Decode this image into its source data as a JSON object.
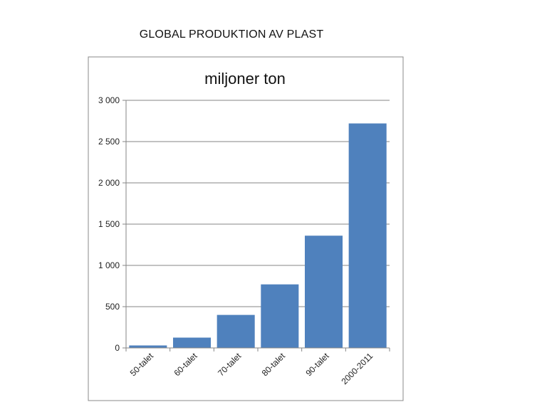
{
  "page": {
    "title": "GLOBAL PRODUKTION AV PLAST"
  },
  "chart_data": {
    "type": "bar",
    "title": "miljoner ton",
    "xlabel": "",
    "ylabel": "",
    "categories": [
      "50-talet",
      "60-talet",
      "70-talet",
      "80-talet",
      "90-talet",
      "2000-2011"
    ],
    "values": [
      30,
      125,
      400,
      770,
      1360,
      2720
    ],
    "ylim": [
      0,
      3000
    ],
    "yticks": [
      0,
      500,
      1000,
      1500,
      2000,
      2500,
      3000
    ],
    "ytick_labels": [
      "0",
      "500",
      "1 000",
      "1 500",
      "2 000",
      "2 500",
      "3 000"
    ],
    "grid": true,
    "legend": "none",
    "bar_color": "#4f81bd"
  }
}
